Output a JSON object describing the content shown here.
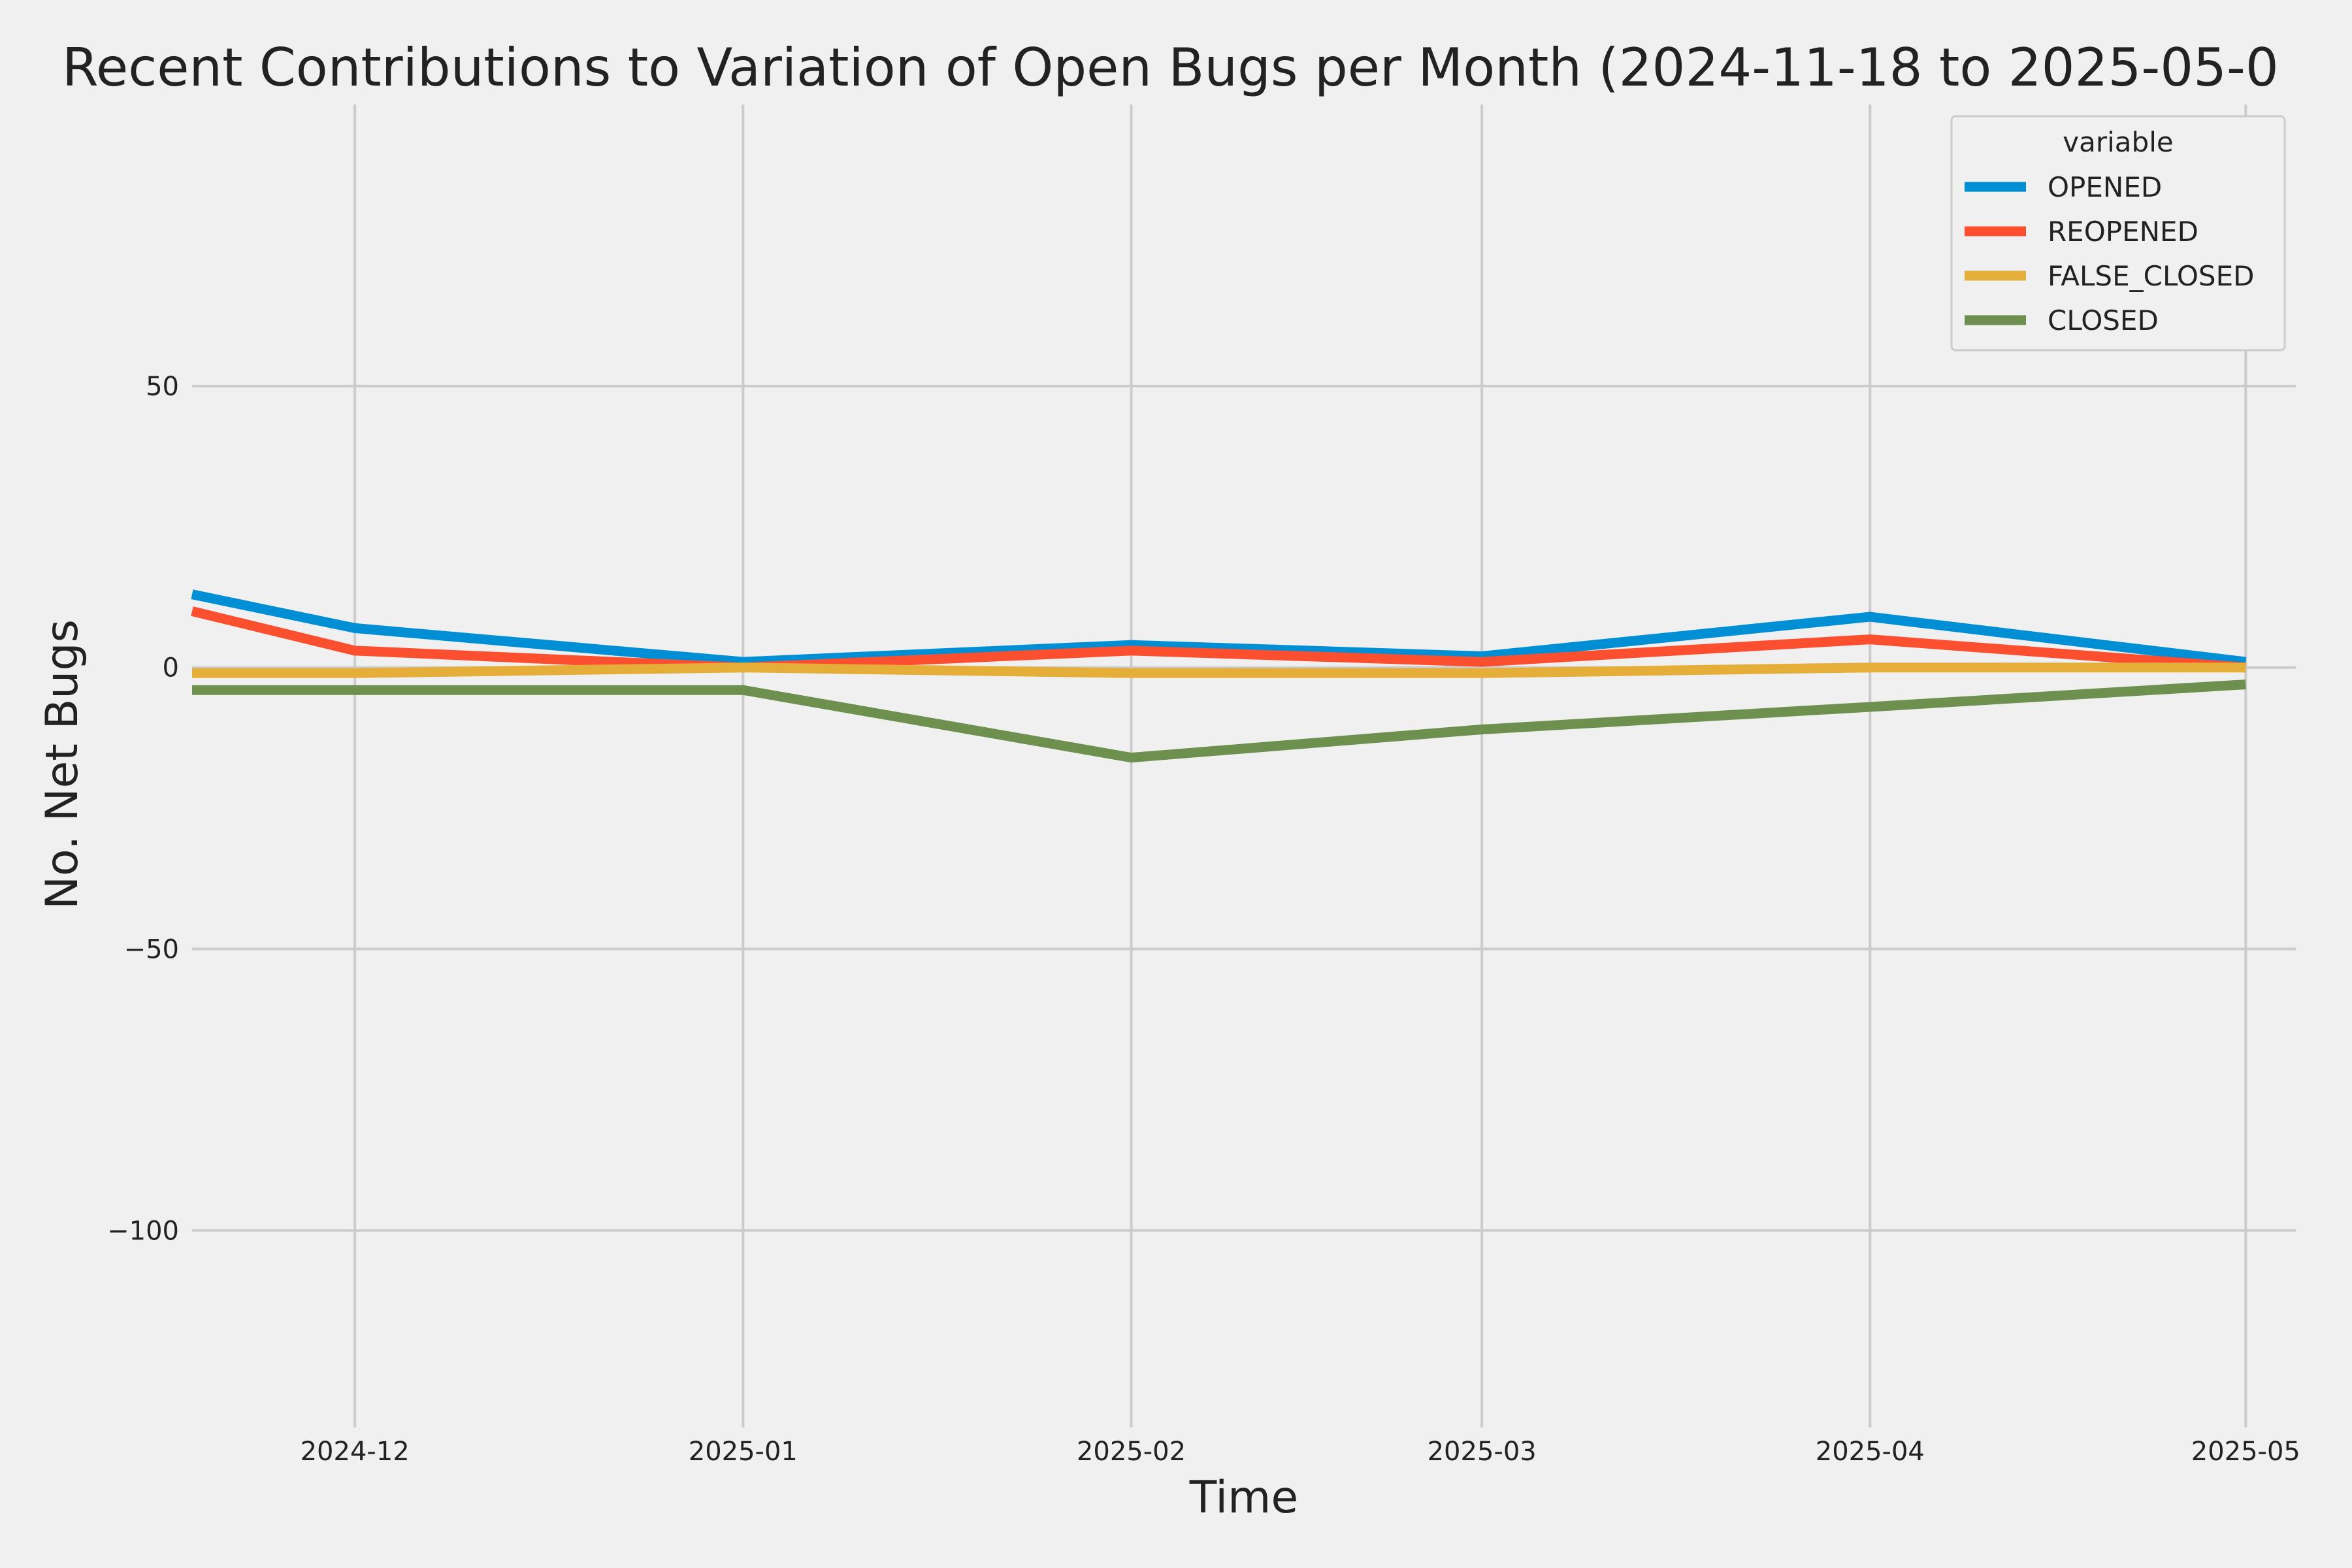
{
  "chart_data": {
    "type": "line",
    "title": "Recent Contributions to Variation of Open Bugs per Month (2024-11-18 to 2025-05-0",
    "xlabel": "Time",
    "ylabel": "No. Net Bugs",
    "x": [
      "2024-11-18",
      "2024-12-01",
      "2025-01-01",
      "2025-02-01",
      "2025-03-01",
      "2025-04-01",
      "2025-05-01"
    ],
    "xlim": [
      "2024-11-18",
      "2025-05-05"
    ],
    "ylim": [
      -135,
      100
    ],
    "x_ticks": [
      {
        "date": "2024-12-01",
        "label": "2024-12"
      },
      {
        "date": "2025-01-01",
        "label": "2025-01"
      },
      {
        "date": "2025-02-01",
        "label": "2025-02"
      },
      {
        "date": "2025-03-01",
        "label": "2025-03"
      },
      {
        "date": "2025-04-01",
        "label": "2025-04"
      },
      {
        "date": "2025-05-01",
        "label": "2025-05"
      }
    ],
    "y_ticks": [
      {
        "value": 50,
        "label": "50"
      },
      {
        "value": 0,
        "label": "0"
      },
      {
        "value": -50,
        "label": "−50"
      },
      {
        "value": -100,
        "label": "−100"
      }
    ],
    "grid": true,
    "legend": {
      "title": "variable",
      "placement": "top-right"
    },
    "series": [
      {
        "name": "OPENED",
        "color": "#008fd5",
        "values": [
          13,
          7,
          1,
          4,
          2,
          9,
          1
        ]
      },
      {
        "name": "REOPENED",
        "color": "#fc4f30",
        "values": [
          10,
          3,
          0,
          3,
          1,
          5,
          0
        ]
      },
      {
        "name": "FALSE_CLOSED",
        "color": "#e5ae38",
        "values": [
          -1,
          -1,
          0,
          -1,
          -1,
          0,
          0
        ]
      },
      {
        "name": "CLOSED",
        "color": "#6d904f",
        "values": [
          -4,
          -4,
          -4,
          -16,
          -11,
          -7,
          -3
        ]
      }
    ]
  }
}
